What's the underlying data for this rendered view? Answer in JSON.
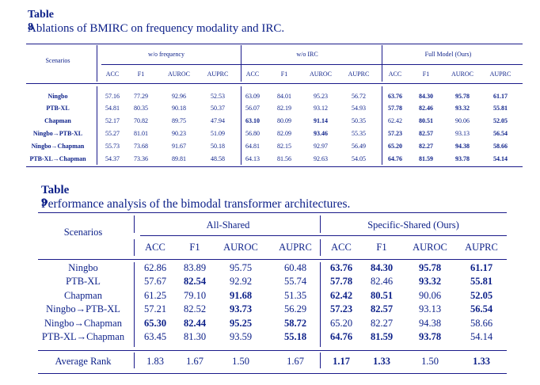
{
  "table8": {
    "number": "Table 8",
    "caption": "Ablations of BMIRC on frequency modality and IRC.",
    "scenarios_header": "Scenarios",
    "groups": [
      "w/o frequency",
      "w/o IRC",
      "Full Model (Ours)"
    ],
    "metrics": [
      "ACC",
      "F1",
      "AUROC",
      "AUPRC"
    ],
    "rows": [
      {
        "scenario": "Ningbo",
        "values": [
          "57.16",
          "77.29",
          "92.96",
          "52.53",
          "63.09",
          "84.01",
          "95.23",
          "56.72",
          "63.76",
          "84.30",
          "95.78",
          "61.17"
        ],
        "bold": [
          8,
          9,
          10,
          11
        ]
      },
      {
        "scenario": "PTB-XL",
        "values": [
          "54.81",
          "80.35",
          "90.18",
          "50.37",
          "56.07",
          "82.19",
          "93.12",
          "54.93",
          "57.78",
          "82.46",
          "93.32",
          "55.81"
        ],
        "bold": [
          8,
          9,
          10,
          11
        ]
      },
      {
        "scenario": "Chapman",
        "values": [
          "52.17",
          "70.82",
          "89.75",
          "47.94",
          "63.10",
          "80.09",
          "91.14",
          "50.35",
          "62.42",
          "80.51",
          "90.06",
          "52.05"
        ],
        "bold": [
          4,
          6,
          9,
          11
        ]
      },
      {
        "scenario": "Ningbo→PTB-XL",
        "values": [
          "55.27",
          "81.01",
          "90.23",
          "51.09",
          "56.80",
          "82.09",
          "93.46",
          "55.35",
          "57.23",
          "82.57",
          "93.13",
          "56.54"
        ],
        "bold": [
          6,
          8,
          9,
          11
        ]
      },
      {
        "scenario": "Ningbo→Chapman",
        "values": [
          "55.73",
          "73.68",
          "91.67",
          "50.18",
          "64.81",
          "82.15",
          "92.97",
          "56.49",
          "65.20",
          "82.27",
          "94.38",
          "58.66"
        ],
        "bold": [
          8,
          9,
          10,
          11
        ]
      },
      {
        "scenario": "PTB-XL→Chapman",
        "values": [
          "54.37",
          "73.36",
          "89.81",
          "48.58",
          "64.13",
          "81.56",
          "92.63",
          "54.05",
          "64.76",
          "81.59",
          "93.78",
          "54.14"
        ],
        "bold": [
          8,
          9,
          10,
          11
        ]
      }
    ]
  },
  "table9": {
    "number": "Table 9",
    "caption": "Performance analysis of the bimodal transformer architectures.",
    "scenarios_header": "Scenarios",
    "groups": [
      "All-Shared",
      "Specific-Shared (Ours)"
    ],
    "metrics": [
      "ACC",
      "F1",
      "AUROC",
      "AUPRC"
    ],
    "rows": [
      {
        "scenario": "Ningbo",
        "values": [
          "62.86",
          "83.89",
          "95.75",
          "60.48",
          "63.76",
          "84.30",
          "95.78",
          "61.17"
        ],
        "bold": [
          4,
          5,
          6,
          7
        ]
      },
      {
        "scenario": "PTB-XL",
        "values": [
          "57.67",
          "82.54",
          "92.92",
          "55.74",
          "57.78",
          "82.46",
          "93.32",
          "55.81"
        ],
        "bold": [
          1,
          4,
          6,
          7
        ]
      },
      {
        "scenario": "Chapman",
        "values": [
          "61.25",
          "79.10",
          "91.68",
          "51.35",
          "62.42",
          "80.51",
          "90.06",
          "52.05"
        ],
        "bold": [
          2,
          4,
          5,
          7
        ]
      },
      {
        "scenario": "Ningbo→PTB-XL",
        "values": [
          "57.21",
          "82.52",
          "93.73",
          "56.29",
          "57.23",
          "82.57",
          "93.13",
          "56.54"
        ],
        "bold": [
          2,
          4,
          5,
          7
        ]
      },
      {
        "scenario": "Ningbo→Chapman",
        "values": [
          "65.30",
          "82.44",
          "95.25",
          "58.72",
          "65.20",
          "82.27",
          "94.38",
          "58.66"
        ],
        "bold": [
          0,
          1,
          2,
          3
        ]
      },
      {
        "scenario": "PTB-XL→Chapman",
        "values": [
          "63.45",
          "81.30",
          "93.59",
          "55.18",
          "64.76",
          "81.59",
          "93.78",
          "54.14"
        ],
        "bold": [
          3,
          4,
          5,
          6
        ]
      }
    ],
    "average_rank": {
      "label": "Average Rank",
      "values": [
        "1.83",
        "1.67",
        "1.50",
        "1.67",
        "1.17",
        "1.33",
        "1.50",
        "1.33"
      ],
      "bold": [
        4,
        5,
        7
      ]
    }
  }
}
